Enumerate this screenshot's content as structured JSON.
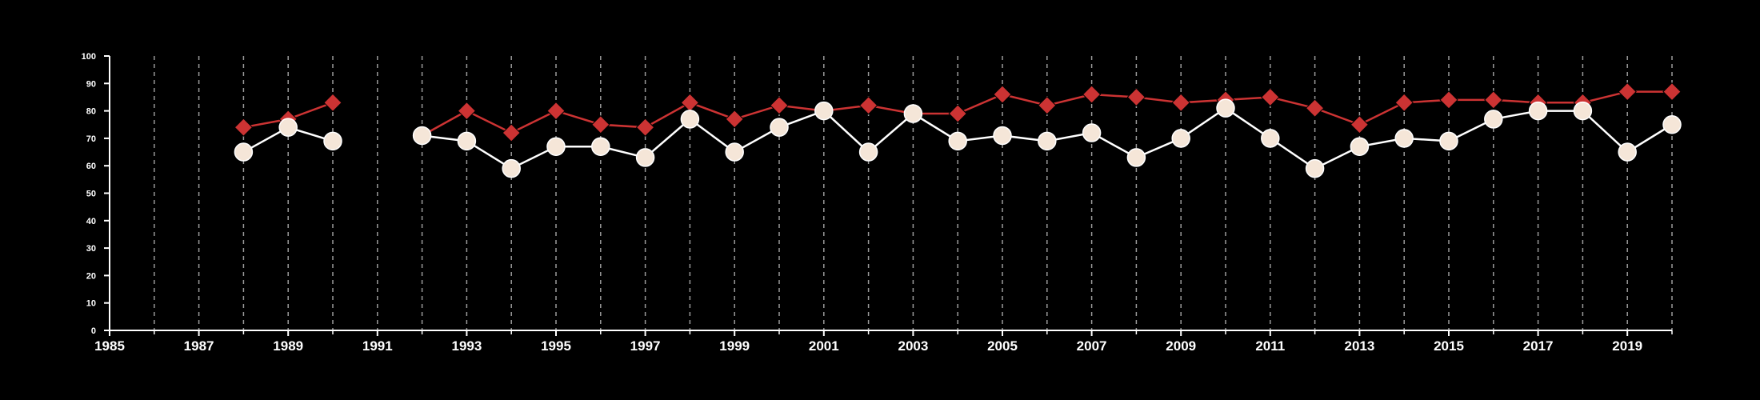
{
  "chart_data": {
    "type": "line",
    "title": "",
    "xlabel": "",
    "ylabel": "",
    "xlim": [
      1985,
      2020
    ],
    "ylim": [
      0,
      100
    ],
    "x_ticks": [
      1985,
      1987,
      1989,
      1991,
      1993,
      1995,
      1997,
      1999,
      2001,
      2003,
      2005,
      2007,
      2009,
      2011,
      2013,
      2015,
      2017,
      2019
    ],
    "x_tick_labels": [
      "1985",
      "1987",
      "1989",
      "1991",
      "1993",
      "1995",
      "1997",
      "1999",
      "2001",
      "2003",
      "2005",
      "2007",
      "2009",
      "2011",
      "2013",
      "2015",
      "2017",
      "2019"
    ],
    "y_ticks": [
      0,
      10,
      20,
      30,
      40,
      50,
      60,
      70,
      80,
      90,
      100
    ],
    "y_tick_labels": [
      "0",
      "10",
      "20",
      "30",
      "40",
      "50",
      "60",
      "70",
      "80",
      "90",
      "100"
    ],
    "grid": "vertical dashed lines at every year",
    "legend": "none",
    "background_color": "#000000",
    "axis_color": "#ffffff",
    "series": [
      {
        "marker": "diamond",
        "color": "#cc3333",
        "x": [
          1988,
          1989,
          1990,
          1992,
          1993,
          1994,
          1995,
          1996,
          1997,
          1998,
          1999,
          2000,
          2001,
          2002,
          2003,
          2004,
          2005,
          2006,
          2007,
          2008,
          2009,
          2010,
          2011,
          2012,
          2013,
          2014,
          2015,
          2016,
          2017,
          2018,
          2019,
          2020
        ],
        "values": [
          74,
          77,
          83,
          71,
          80,
          72,
          80,
          75,
          74,
          83,
          77,
          82,
          80,
          82,
          79,
          79,
          86,
          82,
          86,
          85,
          83,
          84,
          85,
          81,
          75,
          83,
          84,
          84,
          83,
          83,
          87,
          87
        ]
      },
      {
        "marker": "circle",
        "color": "#f5e6d8",
        "line_color": "#ffffff",
        "x": [
          1988,
          1989,
          1990,
          1992,
          1993,
          1994,
          1995,
          1996,
          1997,
          1998,
          1999,
          2000,
          2001,
          2002,
          2003,
          2004,
          2005,
          2006,
          2007,
          2008,
          2009,
          2010,
          2011,
          2012,
          2013,
          2014,
          2015,
          2016,
          2017,
          2018,
          2019,
          2020
        ],
        "values": [
          65,
          74,
          69,
          71,
          69,
          59,
          67,
          67,
          63,
          77,
          65,
          74,
          80,
          65,
          79,
          69,
          71,
          69,
          72,
          63,
          70,
          81,
          70,
          59,
          67,
          70,
          69,
          77,
          80,
          80,
          65,
          75
        ]
      }
    ]
  }
}
